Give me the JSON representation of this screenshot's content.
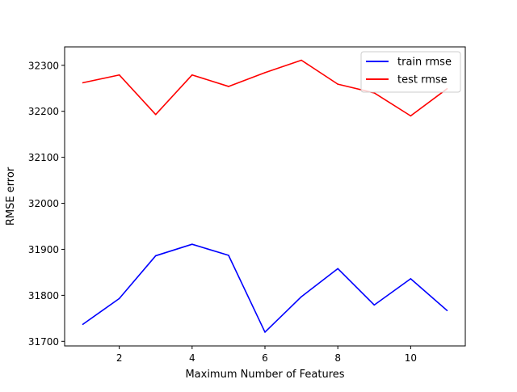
{
  "chart_data": {
    "type": "line",
    "xlabel": "Maximum Number of Features",
    "ylabel": "RMSE error",
    "xlim": [
      0.5,
      11.5
    ],
    "ylim": [
      31690,
      32340
    ],
    "xticks": [
      2,
      4,
      6,
      8,
      10
    ],
    "yticks": [
      31700,
      31800,
      31900,
      32000,
      32100,
      32200,
      32300
    ],
    "grid": false,
    "legend": "top-right",
    "x": [
      1,
      2,
      3,
      4,
      5,
      6,
      7,
      8,
      9,
      10,
      11
    ],
    "series": [
      {
        "name": "train rmse",
        "color": "#0000ff",
        "values": [
          31737,
          31793,
          31886,
          31911,
          31887,
          31720,
          31797,
          31858,
          31779,
          31836,
          31767
        ]
      },
      {
        "name": "test rmse",
        "color": "#ff0000",
        "values": [
          32262,
          32279,
          32193,
          32279,
          32254,
          32284,
          32311,
          32259,
          32240,
          32190,
          32249
        ]
      }
    ]
  }
}
